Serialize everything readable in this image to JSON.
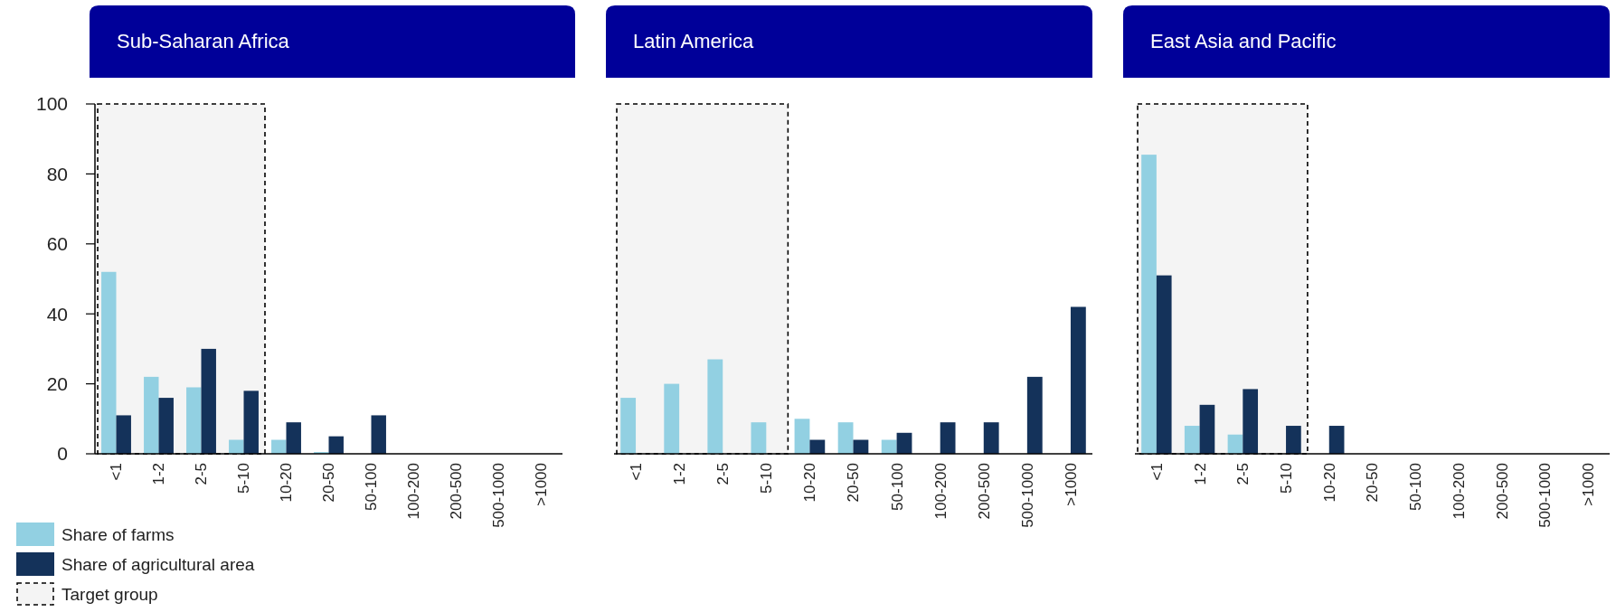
{
  "chart_data": [
    {
      "type": "bar",
      "title": "Sub-Saharan Africa",
      "categories": [
        "<1",
        "1-2",
        "2-5",
        "5-10",
        "10-20",
        "20-50",
        "50-100",
        "100-200",
        "200-500",
        "500-1000",
        ">1000"
      ],
      "ylim": [
        0,
        100
      ],
      "yticks": [
        0,
        20,
        40,
        60,
        80,
        100
      ],
      "grid": false,
      "legend": "bottom",
      "series": [
        {
          "name": "Share of farms",
          "color": "#92d0e2",
          "values": [
            52,
            22,
            19,
            4,
            4,
            0.5,
            null,
            null,
            null,
            null,
            null
          ]
        },
        {
          "name": "Share of agricultural area",
          "color": "#14325a",
          "values": [
            11,
            16,
            30,
            18,
            9,
            5,
            11,
            null,
            null,
            null,
            null
          ]
        }
      ],
      "bands": [
        {
          "axis": "x",
          "from": "<1",
          "to": "5-10",
          "label": "Target group"
        }
      ]
    },
    {
      "type": "bar",
      "title": "Latin America",
      "categories": [
        "<1",
        "1-2",
        "2-5",
        "5-10",
        "10-20",
        "20-50",
        "50-100",
        "100-200",
        "200-500",
        "500-1000",
        ">1000"
      ],
      "ylim": [
        0,
        100
      ],
      "tick_labels": "x",
      "grid": false,
      "series": [
        {
          "color": "#92d0e2",
          "values": [
            16,
            20,
            27,
            9,
            10,
            9,
            4,
            null,
            null,
            null,
            null
          ]
        },
        {
          "color": "#14325a",
          "values": [
            null,
            null,
            null,
            null,
            4,
            4,
            6,
            9,
            9,
            22,
            42
          ]
        }
      ],
      "bands": [
        {
          "axis": "x",
          "from": "<1",
          "to": "5-10"
        }
      ]
    },
    {
      "type": "bar",
      "title": "East Asia and Pacific",
      "categories": [
        "<1",
        "1-2",
        "2-5",
        "5-10",
        "10-20",
        "20-50",
        "50-100",
        "100-200",
        "200-500",
        "500-1000",
        ">1000"
      ],
      "ylim": [
        0,
        100
      ],
      "tick_labels": "x",
      "grid": false,
      "series": [
        {
          "color": "#92d0e2",
          "values": [
            85.5,
            8,
            5.5,
            null,
            null,
            null,
            null,
            null,
            null,
            null,
            null
          ]
        },
        {
          "color": "#14325a",
          "values": [
            51,
            14,
            18.5,
            8,
            8,
            null,
            null,
            null,
            null,
            null,
            null
          ]
        }
      ],
      "bands": [
        {
          "axis": "x",
          "from": "<1",
          "to": "5-10"
        }
      ]
    }
  ]
}
